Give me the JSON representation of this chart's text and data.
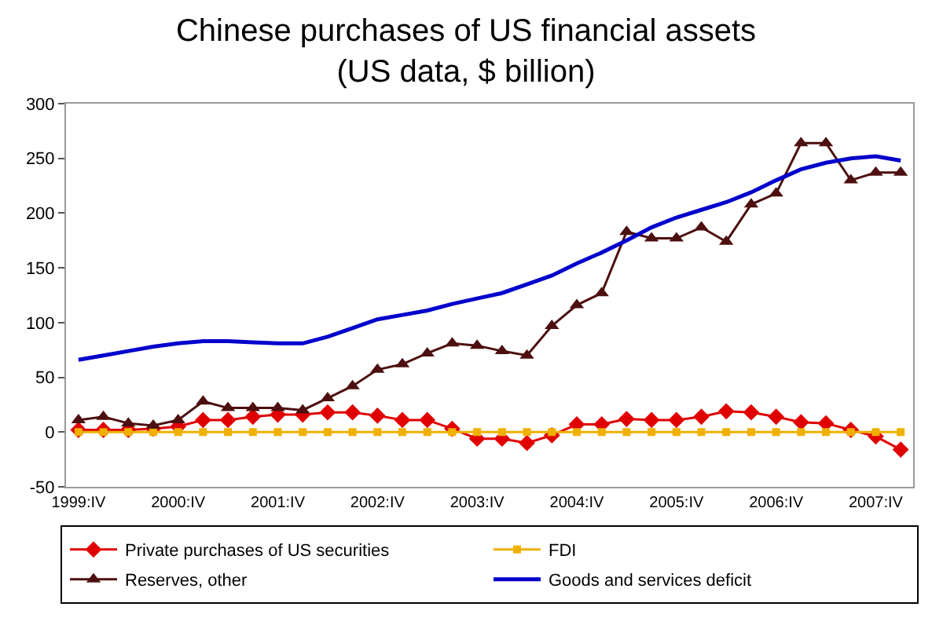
{
  "chart_data": {
    "type": "line",
    "title": "Chinese purchases of US financial assets\n(US data, $ billion)",
    "categories": [
      "1999:IV",
      null,
      null,
      null,
      "2000:IV",
      null,
      null,
      null,
      "2001:IV",
      null,
      null,
      null,
      "2002:IV",
      null,
      null,
      null,
      "2003:IV",
      null,
      null,
      null,
      "2004:IV",
      null,
      null,
      null,
      "2005:IV",
      null,
      null,
      null,
      "2006:IV",
      null,
      null,
      null,
      "2007:IV",
      null
    ],
    "series": [
      {
        "name": "Private purchases of US securities",
        "color": "#e00000",
        "marker": "diamond",
        "values": [
          2,
          2,
          2,
          3,
          5,
          11,
          11,
          14,
          16,
          16,
          18,
          18,
          15,
          11,
          11,
          3,
          -6,
          -6,
          -10,
          -3,
          7,
          7,
          12,
          11,
          11,
          14,
          19,
          18,
          14,
          9,
          8,
          2,
          -4,
          -16
        ]
      },
      {
        "name": "FDI",
        "color": "#f0b000",
        "marker": "square",
        "values": [
          0,
          0,
          0,
          0,
          0,
          0,
          0,
          0,
          0,
          0,
          0,
          0,
          0,
          0,
          0,
          0,
          0,
          0,
          0,
          0,
          0,
          0,
          0,
          0,
          0,
          0,
          0,
          0,
          0,
          0,
          0,
          0,
          0,
          0
        ]
      },
      {
        "name": "Reserves, other",
        "color": "#4d0f0f",
        "marker": "triangle",
        "values": [
          11,
          14,
          8,
          6,
          11,
          28,
          22,
          22,
          22,
          20,
          31,
          42,
          57,
          62,
          72,
          81,
          79,
          74,
          70,
          97,
          116,
          127,
          183,
          177,
          177,
          187,
          174,
          208,
          218,
          264,
          264,
          230,
          237,
          237
        ]
      },
      {
        "name": "Goods and services deficit",
        "color": "#0000cc",
        "marker": "none",
        "values": [
          66,
          70,
          74,
          78,
          81,
          83,
          83,
          82,
          81,
          81,
          87,
          95,
          103,
          107,
          111,
          117,
          122,
          127,
          135,
          143,
          154,
          164,
          175,
          187,
          196,
          203,
          210,
          219,
          230,
          240,
          246,
          250,
          252,
          248
        ]
      }
    ],
    "ylim": [
      -50,
      300
    ],
    "yticks": [
      -50,
      0,
      50,
      100,
      150,
      200,
      250,
      300
    ],
    "grid": false,
    "legend": "bottom"
  }
}
